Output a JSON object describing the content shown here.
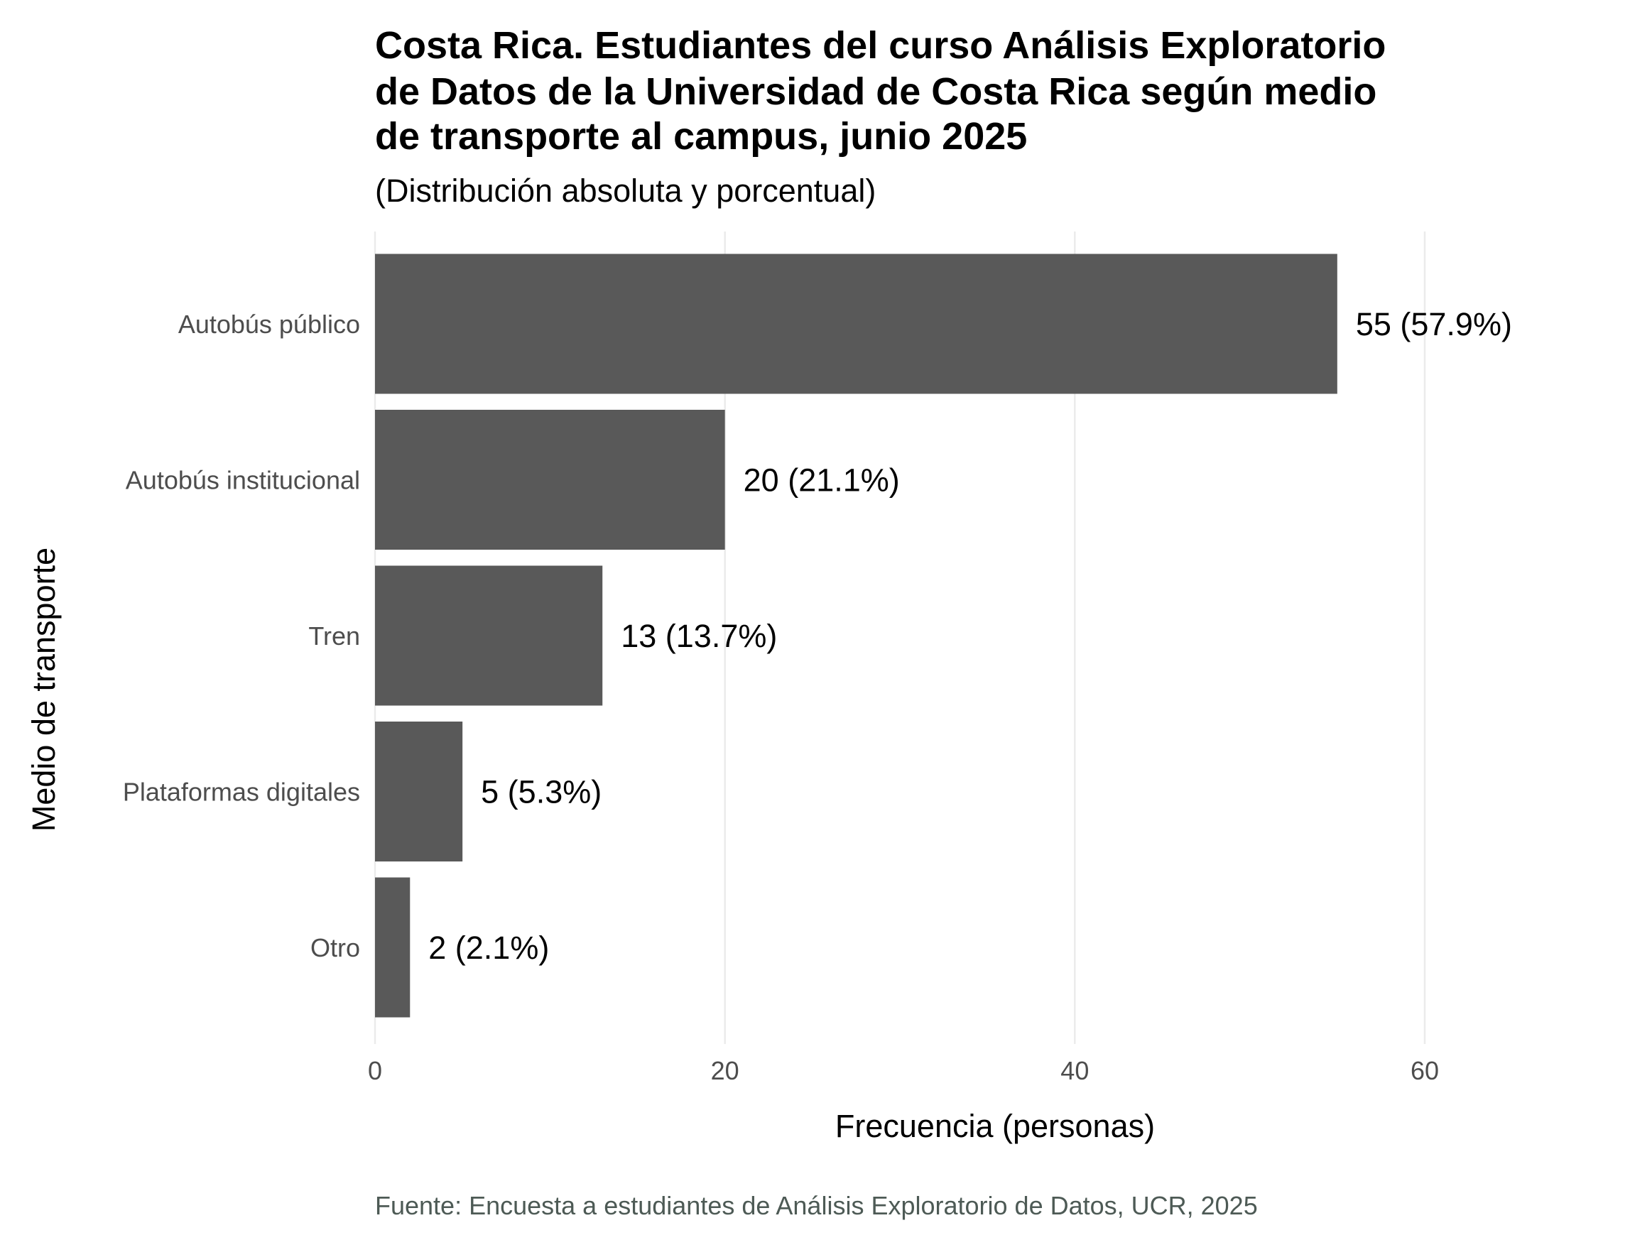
{
  "chart_data": {
    "type": "bar",
    "orientation": "horizontal",
    "title_lines": [
      "Costa Rica. Estudiantes del curso Análisis Exploratorio",
      "de Datos de la Universidad de Costa Rica según medio",
      "de transporte al campus, junio 2025"
    ],
    "subtitle": "(Distribución absoluta y porcentual)",
    "categories": [
      "Autobús público",
      "Autobús institucional",
      "Tren",
      "Plataformas digitales",
      "Otro"
    ],
    "values": [
      55,
      20,
      13,
      5,
      2
    ],
    "data_labels": [
      "55 (57.9%)",
      "20 (21.1%)",
      "13 (13.7%)",
      "5 (5.3%)",
      "2 (2.1%)"
    ],
    "xlabel": "Frecuencia (personas)",
    "ylabel": "Medio de transporte",
    "xlim": [
      0,
      70
    ],
    "xticks": [
      0,
      20,
      40,
      60
    ],
    "grid": "vertical-major",
    "legend": "none",
    "caption": "Fuente: Encuesta a estudiantes de Análisis Exploratorio de Datos, UCR, 2025",
    "colors": {
      "bar": "#595959",
      "grid": "#ebebeb",
      "text": "#000000",
      "axis_text": "#4d4d4d",
      "caption": "#4d5a55",
      "background": "#ffffff"
    }
  }
}
